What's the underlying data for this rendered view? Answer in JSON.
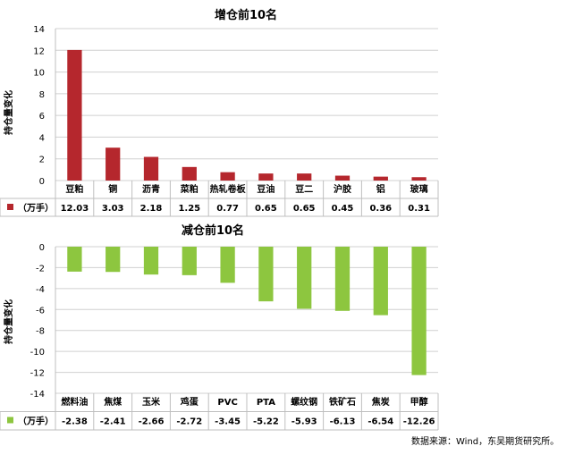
{
  "chart_data": [
    {
      "type": "bar",
      "title": "增仓前10名",
      "ylabel": "持仓量变化",
      "series": [
        {
          "name": "（万手）",
          "values": [
            12.03,
            3.03,
            2.18,
            1.25,
            0.77,
            0.65,
            0.65,
            0.45,
            0.36,
            0.31
          ]
        }
      ],
      "categories": [
        "豆粕",
        "铜",
        "沥青",
        "菜粕",
        "热轧卷板",
        "豆油",
        "豆二",
        "沪胶",
        "铝",
        "玻璃"
      ],
      "value_labels": [
        "12.03",
        "3.03",
        "2.18",
        "1.25",
        "0.77",
        "0.65",
        "0.65",
        "0.45",
        "0.36",
        "0.31"
      ],
      "yticks": [
        "14",
        "12",
        "10",
        "8",
        "6",
        "4",
        "2",
        "0"
      ],
      "ylim": [
        0,
        14
      ],
      "grid": true,
      "legend": "data-table",
      "color": "#b5272d"
    },
    {
      "type": "bar",
      "title": "减仓前10名",
      "ylabel": "持仓量变化",
      "series": [
        {
          "name": "（万手）",
          "values": [
            -2.38,
            -2.41,
            -2.66,
            -2.72,
            -3.45,
            -5.22,
            -5.93,
            -6.13,
            -6.54,
            -12.26
          ]
        }
      ],
      "categories": [
        "燃料油",
        "焦煤",
        "玉米",
        "鸡蛋",
        "PVC",
        "PTA",
        "螺纹钢",
        "铁矿石",
        "焦炭",
        "甲醇"
      ],
      "value_labels": [
        "-2.38",
        "-2.41",
        "-2.66",
        "-2.72",
        "-3.45",
        "-5.22",
        "-5.93",
        "-6.13",
        "-6.54",
        "-12.26"
      ],
      "yticks": [
        "0",
        "-2",
        "-4",
        "-6",
        "-8",
        "-10",
        "-12",
        "-14"
      ],
      "ylim": [
        -14,
        0
      ],
      "grid": true,
      "legend": "data-table",
      "color": "#8dc63f"
    }
  ],
  "source_note": "数据来源：Wind，东吴期货研究所。"
}
